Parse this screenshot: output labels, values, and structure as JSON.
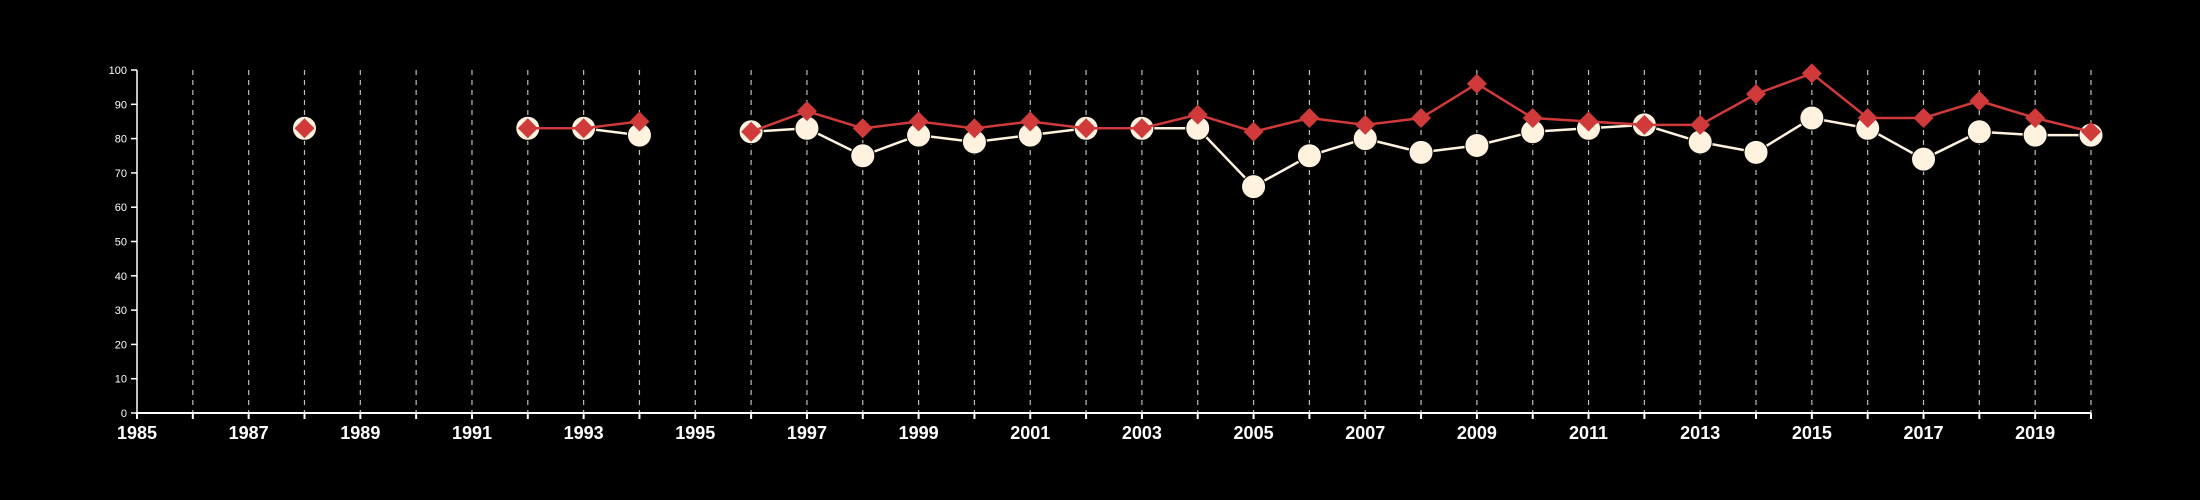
{
  "chart_data": {
    "type": "line",
    "title": "",
    "xlabel": "",
    "ylabel": "",
    "xlim": [
      1985,
      2020
    ],
    "ylim": [
      0,
      100
    ],
    "x_ticks": [
      1985,
      1987,
      1989,
      1991,
      1993,
      1995,
      1997,
      1999,
      2001,
      2003,
      2005,
      2007,
      2009,
      2011,
      2013,
      2015,
      2017,
      2019
    ],
    "x_tick_labels": [
      "1985",
      "1987",
      "1989",
      "1991",
      "1993",
      "1995",
      "1997",
      "1999",
      "2001",
      "2003",
      "2005",
      "2007",
      "2009",
      "2011",
      "2013",
      "2015",
      "2017",
      "2019"
    ],
    "y_ticks": [
      0,
      10,
      20,
      30,
      40,
      50,
      60,
      70,
      80,
      90,
      100
    ],
    "y_tick_labels": [
      "0",
      "10",
      "20",
      "30",
      "40",
      "50",
      "60",
      "70",
      "80",
      "90",
      "100"
    ],
    "vertical_grid": "dashed, every year",
    "legend": "none",
    "series": [
      {
        "color": "#fff3e0",
        "marker": "circle",
        "points": [
          {
            "x": 1988,
            "y": 83
          },
          {
            "x": 1992,
            "y": 83
          },
          {
            "x": 1993,
            "y": 83
          },
          {
            "x": 1994,
            "y": 81
          },
          {
            "x": 1996,
            "y": 82
          },
          {
            "x": 1997,
            "y": 83
          },
          {
            "x": 1998,
            "y": 75
          },
          {
            "x": 1999,
            "y": 81
          },
          {
            "x": 2000,
            "y": 79
          },
          {
            "x": 2001,
            "y": 81
          },
          {
            "x": 2002,
            "y": 83
          },
          {
            "x": 2003,
            "y": 83
          },
          {
            "x": 2004,
            "y": 83
          },
          {
            "x": 2005,
            "y": 66
          },
          {
            "x": 2006,
            "y": 75
          },
          {
            "x": 2007,
            "y": 80
          },
          {
            "x": 2008,
            "y": 76
          },
          {
            "x": 2009,
            "y": 78
          },
          {
            "x": 2010,
            "y": 82
          },
          {
            "x": 2011,
            "y": 83
          },
          {
            "x": 2012,
            "y": 84
          },
          {
            "x": 2013,
            "y": 79
          },
          {
            "x": 2014,
            "y": 76
          },
          {
            "x": 2015,
            "y": 86
          },
          {
            "x": 2016,
            "y": 83
          },
          {
            "x": 2017,
            "y": 74
          },
          {
            "x": 2018,
            "y": 82
          },
          {
            "x": 2019,
            "y": 81
          },
          {
            "x": 2020,
            "y": 81
          }
        ]
      },
      {
        "color": "#d03a3a",
        "marker": "diamond",
        "points": [
          {
            "x": 1988,
            "y": 83
          },
          {
            "x": 1992,
            "y": 83
          },
          {
            "x": 1993,
            "y": 83
          },
          {
            "x": 1994,
            "y": 85
          },
          {
            "x": 1996,
            "y": 82
          },
          {
            "x": 1997,
            "y": 88
          },
          {
            "x": 1998,
            "y": 83
          },
          {
            "x": 1999,
            "y": 85
          },
          {
            "x": 2000,
            "y": 83
          },
          {
            "x": 2001,
            "y": 85
          },
          {
            "x": 2002,
            "y": 83
          },
          {
            "x": 2003,
            "y": 83
          },
          {
            "x": 2004,
            "y": 87
          },
          {
            "x": 2005,
            "y": 82
          },
          {
            "x": 2006,
            "y": 86
          },
          {
            "x": 2007,
            "y": 84
          },
          {
            "x": 2008,
            "y": 86
          },
          {
            "x": 2009,
            "y": 96
          },
          {
            "x": 2010,
            "y": 86
          },
          {
            "x": 2011,
            "y": 85
          },
          {
            "x": 2012,
            "y": 84
          },
          {
            "x": 2013,
            "y": 84
          },
          {
            "x": 2014,
            "y": 93
          },
          {
            "x": 2015,
            "y": 99
          },
          {
            "x": 2016,
            "y": 86
          },
          {
            "x": 2017,
            "y": 86
          },
          {
            "x": 2018,
            "y": 91
          },
          {
            "x": 2019,
            "y": 86
          },
          {
            "x": 2020,
            "y": 82
          }
        ]
      }
    ]
  }
}
